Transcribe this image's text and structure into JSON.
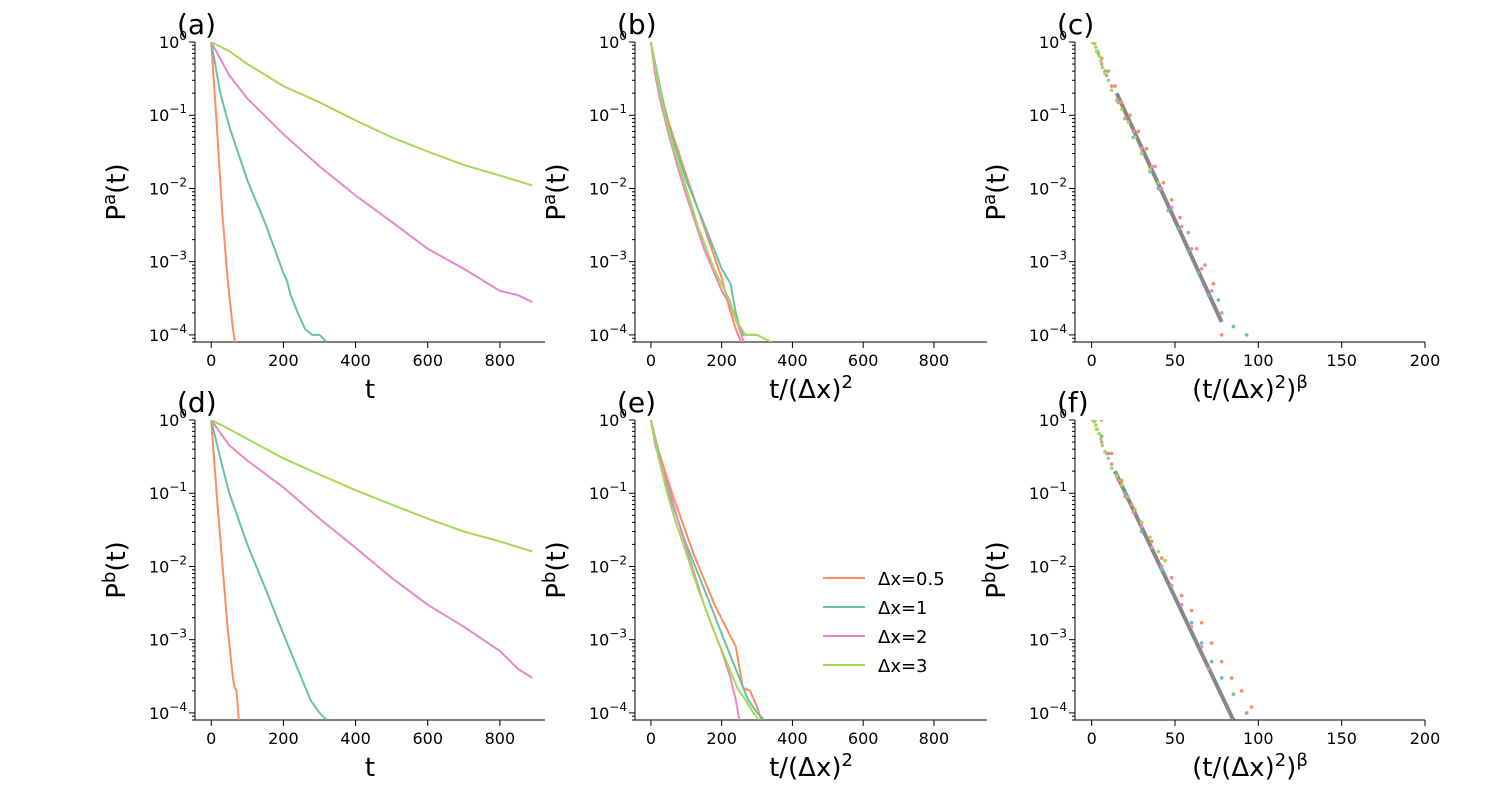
{
  "colors": {
    "dx05": "#fc8d62",
    "dx1": "#66c2a5",
    "dx2": "#e78ac3",
    "dx3": "#a6d854",
    "fit": "#888888"
  },
  "legend": [
    {
      "key": "dx05",
      "label": "Δx=0.5"
    },
    {
      "key": "dx1",
      "label": "Δx=1"
    },
    {
      "key": "dx2",
      "label": "Δx=2"
    },
    {
      "key": "dx3",
      "label": "Δx=3"
    }
  ],
  "chart_data": [
    {
      "panel": "(a)",
      "type": "line",
      "yscale": "log",
      "xlim": [
        -45,
        925
      ],
      "ylim": [
        8e-05,
        1
      ],
      "xticks": [
        0,
        200,
        400,
        600,
        800
      ],
      "xlabel": "t",
      "ylabel_base": "P",
      "ylabel_sup": "a",
      "ylabel_tail": "(t)",
      "series": [
        {
          "name": "Δx=0.5",
          "key": "dx05",
          "x": [
            0,
            15,
            30,
            45,
            60,
            70
          ],
          "y": [
            1,
            0.08,
            0.005,
            0.0006,
            0.00012,
            6e-05
          ]
        },
        {
          "name": "Δx=1",
          "key": "dx1",
          "x": [
            0,
            25,
            50,
            100,
            150,
            200,
            210,
            220,
            240,
            260,
            280,
            300,
            320
          ],
          "y": [
            1,
            0.2,
            0.07,
            0.013,
            0.0033,
            0.0007,
            0.00055,
            0.00035,
            0.0002,
            0.00012,
            0.0001,
            0.0001,
            8e-05
          ]
        },
        {
          "name": "Δx=2",
          "key": "dx2",
          "x": [
            0,
            50,
            100,
            200,
            300,
            400,
            500,
            600,
            700,
            800,
            850,
            890
          ],
          "y": [
            1,
            0.35,
            0.17,
            0.055,
            0.02,
            0.008,
            0.0035,
            0.0015,
            0.0008,
            0.0004,
            0.00035,
            0.00028
          ]
        },
        {
          "name": "Δx=3",
          "key": "dx3",
          "x": [
            0,
            50,
            100,
            200,
            300,
            400,
            500,
            600,
            700,
            800,
            890
          ],
          "y": [
            1,
            0.75,
            0.5,
            0.25,
            0.15,
            0.085,
            0.05,
            0.032,
            0.021,
            0.015,
            0.011
          ]
        }
      ]
    },
    {
      "panel": "(b)",
      "type": "line",
      "yscale": "log",
      "xlim": [
        -45,
        950
      ],
      "ylim": [
        8e-05,
        1
      ],
      "xticks": [
        0,
        200,
        400,
        600,
        800
      ],
      "xlabel": "t/(Δx)",
      "xlabel_sup": "2",
      "ylabel_base": "P",
      "ylabel_sup": "a",
      "ylabel_tail": "(t)",
      "series": [
        {
          "name": "Δx=0.5",
          "key": "dx05",
          "x": [
            0,
            15,
            50,
            100,
            150,
            200,
            220,
            240,
            255
          ],
          "y": [
            1,
            0.35,
            0.08,
            0.015,
            0.003,
            0.0006,
            0.00025,
            0.00012,
            8e-05
          ]
        },
        {
          "name": "Δx=1",
          "key": "dx1",
          "x": [
            0,
            25,
            50,
            100,
            150,
            200,
            225,
            240,
            250,
            260,
            275,
            300
          ],
          "y": [
            1,
            0.25,
            0.07,
            0.013,
            0.0033,
            0.0008,
            0.0005,
            0.0002,
            0.00013,
            0.0001,
            0.0001,
            0.0001
          ]
        },
        {
          "name": "Δx=2",
          "key": "dx2",
          "x": [
            0,
            12.5,
            25,
            50,
            75,
            100,
            150,
            200,
            225,
            250,
            262
          ],
          "y": [
            1,
            0.35,
            0.17,
            0.055,
            0.02,
            0.008,
            0.0015,
            0.0004,
            0.00025,
            0.00012,
            8e-05
          ]
        },
        {
          "name": "Δx=3",
          "key": "dx3",
          "x": [
            0,
            11,
            22,
            44,
            67,
            89,
            133,
            178,
            222,
            244,
            267,
            290,
            300,
            340
          ],
          "y": [
            1,
            0.5,
            0.25,
            0.085,
            0.032,
            0.015,
            0.003,
            0.0008,
            0.0003,
            0.00015,
            0.0001,
            0.0001,
            0.0001,
            8e-05
          ]
        }
      ]
    },
    {
      "panel": "(c)",
      "type": "scatter+line",
      "yscale": "log",
      "xlim": [
        -10,
        200
      ],
      "ylim": [
        8e-05,
        1
      ],
      "xticks": [
        0,
        50,
        100,
        150,
        200
      ],
      "xlabel": "(t/(Δx)",
      "xlabel_sup": "2",
      "xlabel_tail": ")",
      "xlabel_sup2": "β",
      "ylabel_base": "P",
      "ylabel_sup": "a",
      "ylabel_tail": "(t)",
      "fit": {
        "x": [
          15,
          78
        ],
        "y": [
          0.2,
          0.00015
        ]
      },
      "series": [
        {
          "name": "Δx=0.5",
          "key": "dx05",
          "x": [
            2,
            6,
            10,
            14,
            18,
            23,
            28,
            33,
            38,
            43,
            48,
            53,
            58,
            63,
            68,
            73,
            78
          ],
          "y": [
            1,
            0.6,
            0.4,
            0.25,
            0.15,
            0.1,
            0.06,
            0.035,
            0.02,
            0.012,
            0.007,
            0.004,
            0.0025,
            0.0015,
            0.0009,
            0.0005,
            0.0001
          ]
        },
        {
          "name": "Δx=1",
          "key": "dx1",
          "x": [
            1,
            4,
            8,
            12,
            16,
            20,
            25,
            30,
            35,
            40,
            46,
            52,
            58,
            64,
            70,
            76,
            85,
            93
          ],
          "y": [
            1,
            0.7,
            0.4,
            0.25,
            0.15,
            0.09,
            0.05,
            0.03,
            0.017,
            0.01,
            0.005,
            0.0028,
            0.0014,
            0.0007,
            0.00035,
            0.0003,
            0.00013,
            0.0001
          ]
        },
        {
          "name": "Δx=2",
          "key": "dx2",
          "x": [
            1,
            3,
            6,
            9,
            12,
            16,
            20,
            25,
            30,
            36,
            42,
            48,
            54,
            60,
            66,
            72,
            78
          ],
          "y": [
            1,
            0.75,
            0.5,
            0.35,
            0.25,
            0.15,
            0.09,
            0.06,
            0.035,
            0.02,
            0.01,
            0.0055,
            0.003,
            0.0015,
            0.0008,
            0.0004,
            0.0002
          ]
        },
        {
          "name": "Δx=3",
          "key": "dx3",
          "x": [
            0.5,
            1.5,
            2.5,
            3.5,
            4.5,
            5.5,
            6.5,
            8,
            10,
            12,
            15,
            18,
            22,
            26,
            30,
            35,
            40
          ],
          "y": [
            1,
            0.95,
            0.85,
            0.75,
            0.65,
            0.55,
            0.45,
            0.37,
            0.3,
            0.22,
            0.16,
            0.12,
            0.08,
            0.05,
            0.03,
            0.018,
            0.012
          ]
        }
      ]
    },
    {
      "panel": "(d)",
      "type": "line",
      "yscale": "log",
      "xlim": [
        -45,
        925
      ],
      "ylim": [
        8e-05,
        1
      ],
      "xticks": [
        0,
        200,
        400,
        600,
        800
      ],
      "xlabel": "t",
      "ylabel_base": "P",
      "ylabel_sup": "b",
      "ylabel_tail": "(t)",
      "series": [
        {
          "name": "Δx=0.5",
          "key": "dx05",
          "x": [
            0,
            15,
            30,
            45,
            60,
            65,
            70,
            75,
            78
          ],
          "y": [
            1,
            0.1,
            0.012,
            0.0015,
            0.0003,
            0.00022,
            0.0002,
            0.0001,
            6e-05
          ]
        },
        {
          "name": "Δx=1",
          "key": "dx1",
          "x": [
            0,
            25,
            50,
            100,
            150,
            200,
            250,
            275,
            300,
            320
          ],
          "y": [
            1,
            0.3,
            0.1,
            0.02,
            0.005,
            0.0012,
            0.0003,
            0.00015,
            0.0001,
            8e-05
          ]
        },
        {
          "name": "Δx=2",
          "key": "dx2",
          "x": [
            0,
            50,
            100,
            200,
            300,
            400,
            500,
            600,
            700,
            800,
            850,
            890
          ],
          "y": [
            1,
            0.45,
            0.28,
            0.12,
            0.045,
            0.018,
            0.007,
            0.003,
            0.0015,
            0.0007,
            0.0004,
            0.0003
          ]
        },
        {
          "name": "Δx=3",
          "key": "dx3",
          "x": [
            0,
            50,
            100,
            200,
            300,
            400,
            500,
            600,
            700,
            800,
            890
          ],
          "y": [
            1,
            0.75,
            0.55,
            0.3,
            0.18,
            0.11,
            0.07,
            0.045,
            0.03,
            0.022,
            0.016
          ]
        }
      ]
    },
    {
      "panel": "(e)",
      "type": "line",
      "yscale": "log",
      "xlim": [
        -45,
        950
      ],
      "ylim": [
        8e-05,
        1
      ],
      "xticks": [
        0,
        200,
        400,
        600,
        800
      ],
      "xlabel": "t/(Δx)",
      "xlabel_sup": "2",
      "ylabel_base": "P",
      "ylabel_sup": "b",
      "ylabel_tail": "(t)",
      "series": [
        {
          "name": "Δx=0.5",
          "key": "dx05",
          "x": [
            0,
            20,
            60,
            120,
            180,
            240,
            260,
            280,
            300,
            312
          ],
          "y": [
            1,
            0.4,
            0.1,
            0.015,
            0.003,
            0.0008,
            0.00022,
            0.0002,
            0.00012,
            8e-05
          ]
        },
        {
          "name": "Δx=1",
          "key": "dx1",
          "x": [
            0,
            25,
            50,
            100,
            150,
            200,
            250,
            275,
            300,
            320
          ],
          "y": [
            1,
            0.3,
            0.1,
            0.02,
            0.005,
            0.0012,
            0.0003,
            0.00015,
            0.0001,
            8e-05
          ]
        },
        {
          "name": "Δx=2",
          "key": "dx2",
          "x": [
            0,
            12.5,
            25,
            50,
            75,
            100,
            150,
            200,
            225,
            240,
            250
          ],
          "y": [
            1,
            0.45,
            0.28,
            0.12,
            0.045,
            0.018,
            0.003,
            0.0007,
            0.0003,
            0.00015,
            8e-05
          ]
        },
        {
          "name": "Δx=3",
          "key": "dx3",
          "x": [
            0,
            11,
            22,
            44,
            67,
            89,
            133,
            178,
            222,
            244,
            267,
            290,
            305
          ],
          "y": [
            1,
            0.55,
            0.3,
            0.11,
            0.045,
            0.022,
            0.005,
            0.0013,
            0.0004,
            0.00022,
            0.00015,
            0.0001,
            8e-05
          ]
        }
      ]
    },
    {
      "panel": "(f)",
      "type": "scatter+line",
      "yscale": "log",
      "xlim": [
        -10,
        200
      ],
      "ylim": [
        8e-05,
        1
      ],
      "xticks": [
        0,
        50,
        100,
        150,
        200
      ],
      "xlabel": "(t/(Δx)",
      "xlabel_sup": "2",
      "xlabel_tail": ")",
      "xlabel_sup2": "β",
      "ylabel_base": "P",
      "ylabel_sup": "b",
      "ylabel_tail": "(t)",
      "fit": {
        "x": [
          14,
          85
        ],
        "y": [
          0.2,
          8e-05
        ]
      },
      "series": [
        {
          "name": "Δx=0.5",
          "key": "dx05",
          "x": [
            6,
            12,
            18,
            24,
            30,
            36,
            42,
            48,
            54,
            60,
            66,
            72,
            78,
            84,
            90,
            96
          ],
          "y": [
            1,
            0.35,
            0.15,
            0.07,
            0.04,
            0.022,
            0.013,
            0.007,
            0.004,
            0.0025,
            0.0017,
            0.0009,
            0.0005,
            0.0003,
            0.0002,
            0.00012
          ]
        },
        {
          "name": "Δx=1",
          "key": "dx1",
          "x": [
            2,
            6,
            10,
            15,
            20,
            25,
            30,
            36,
            42,
            48,
            54,
            60,
            66,
            72,
            78,
            85,
            93
          ],
          "y": [
            1,
            0.6,
            0.35,
            0.18,
            0.1,
            0.055,
            0.03,
            0.018,
            0.009,
            0.0055,
            0.003,
            0.0017,
            0.0009,
            0.0005,
            0.0003,
            0.00018,
            0.0001
          ]
        },
        {
          "name": "Δx=2",
          "key": "dx2",
          "x": [
            1,
            3,
            6,
            9,
            12,
            16,
            20,
            25,
            30,
            36,
            42,
            48,
            54,
            60,
            66,
            70
          ],
          "y": [
            1,
            0.75,
            0.5,
            0.35,
            0.25,
            0.15,
            0.09,
            0.055,
            0.035,
            0.018,
            0.01,
            0.0055,
            0.003,
            0.0015,
            0.0008,
            0.0004
          ]
        },
        {
          "name": "Δx=3",
          "key": "dx3",
          "x": [
            0.5,
            1.5,
            2.5,
            3.5,
            4.5,
            5.5,
            6.5,
            8,
            10,
            12,
            15,
            18,
            22,
            26,
            30,
            35,
            40,
            44
          ],
          "y": [
            1,
            0.95,
            0.85,
            0.75,
            0.65,
            0.55,
            0.45,
            0.37,
            0.3,
            0.22,
            0.17,
            0.13,
            0.09,
            0.06,
            0.04,
            0.025,
            0.016,
            0.012
          ]
        }
      ]
    }
  ]
}
